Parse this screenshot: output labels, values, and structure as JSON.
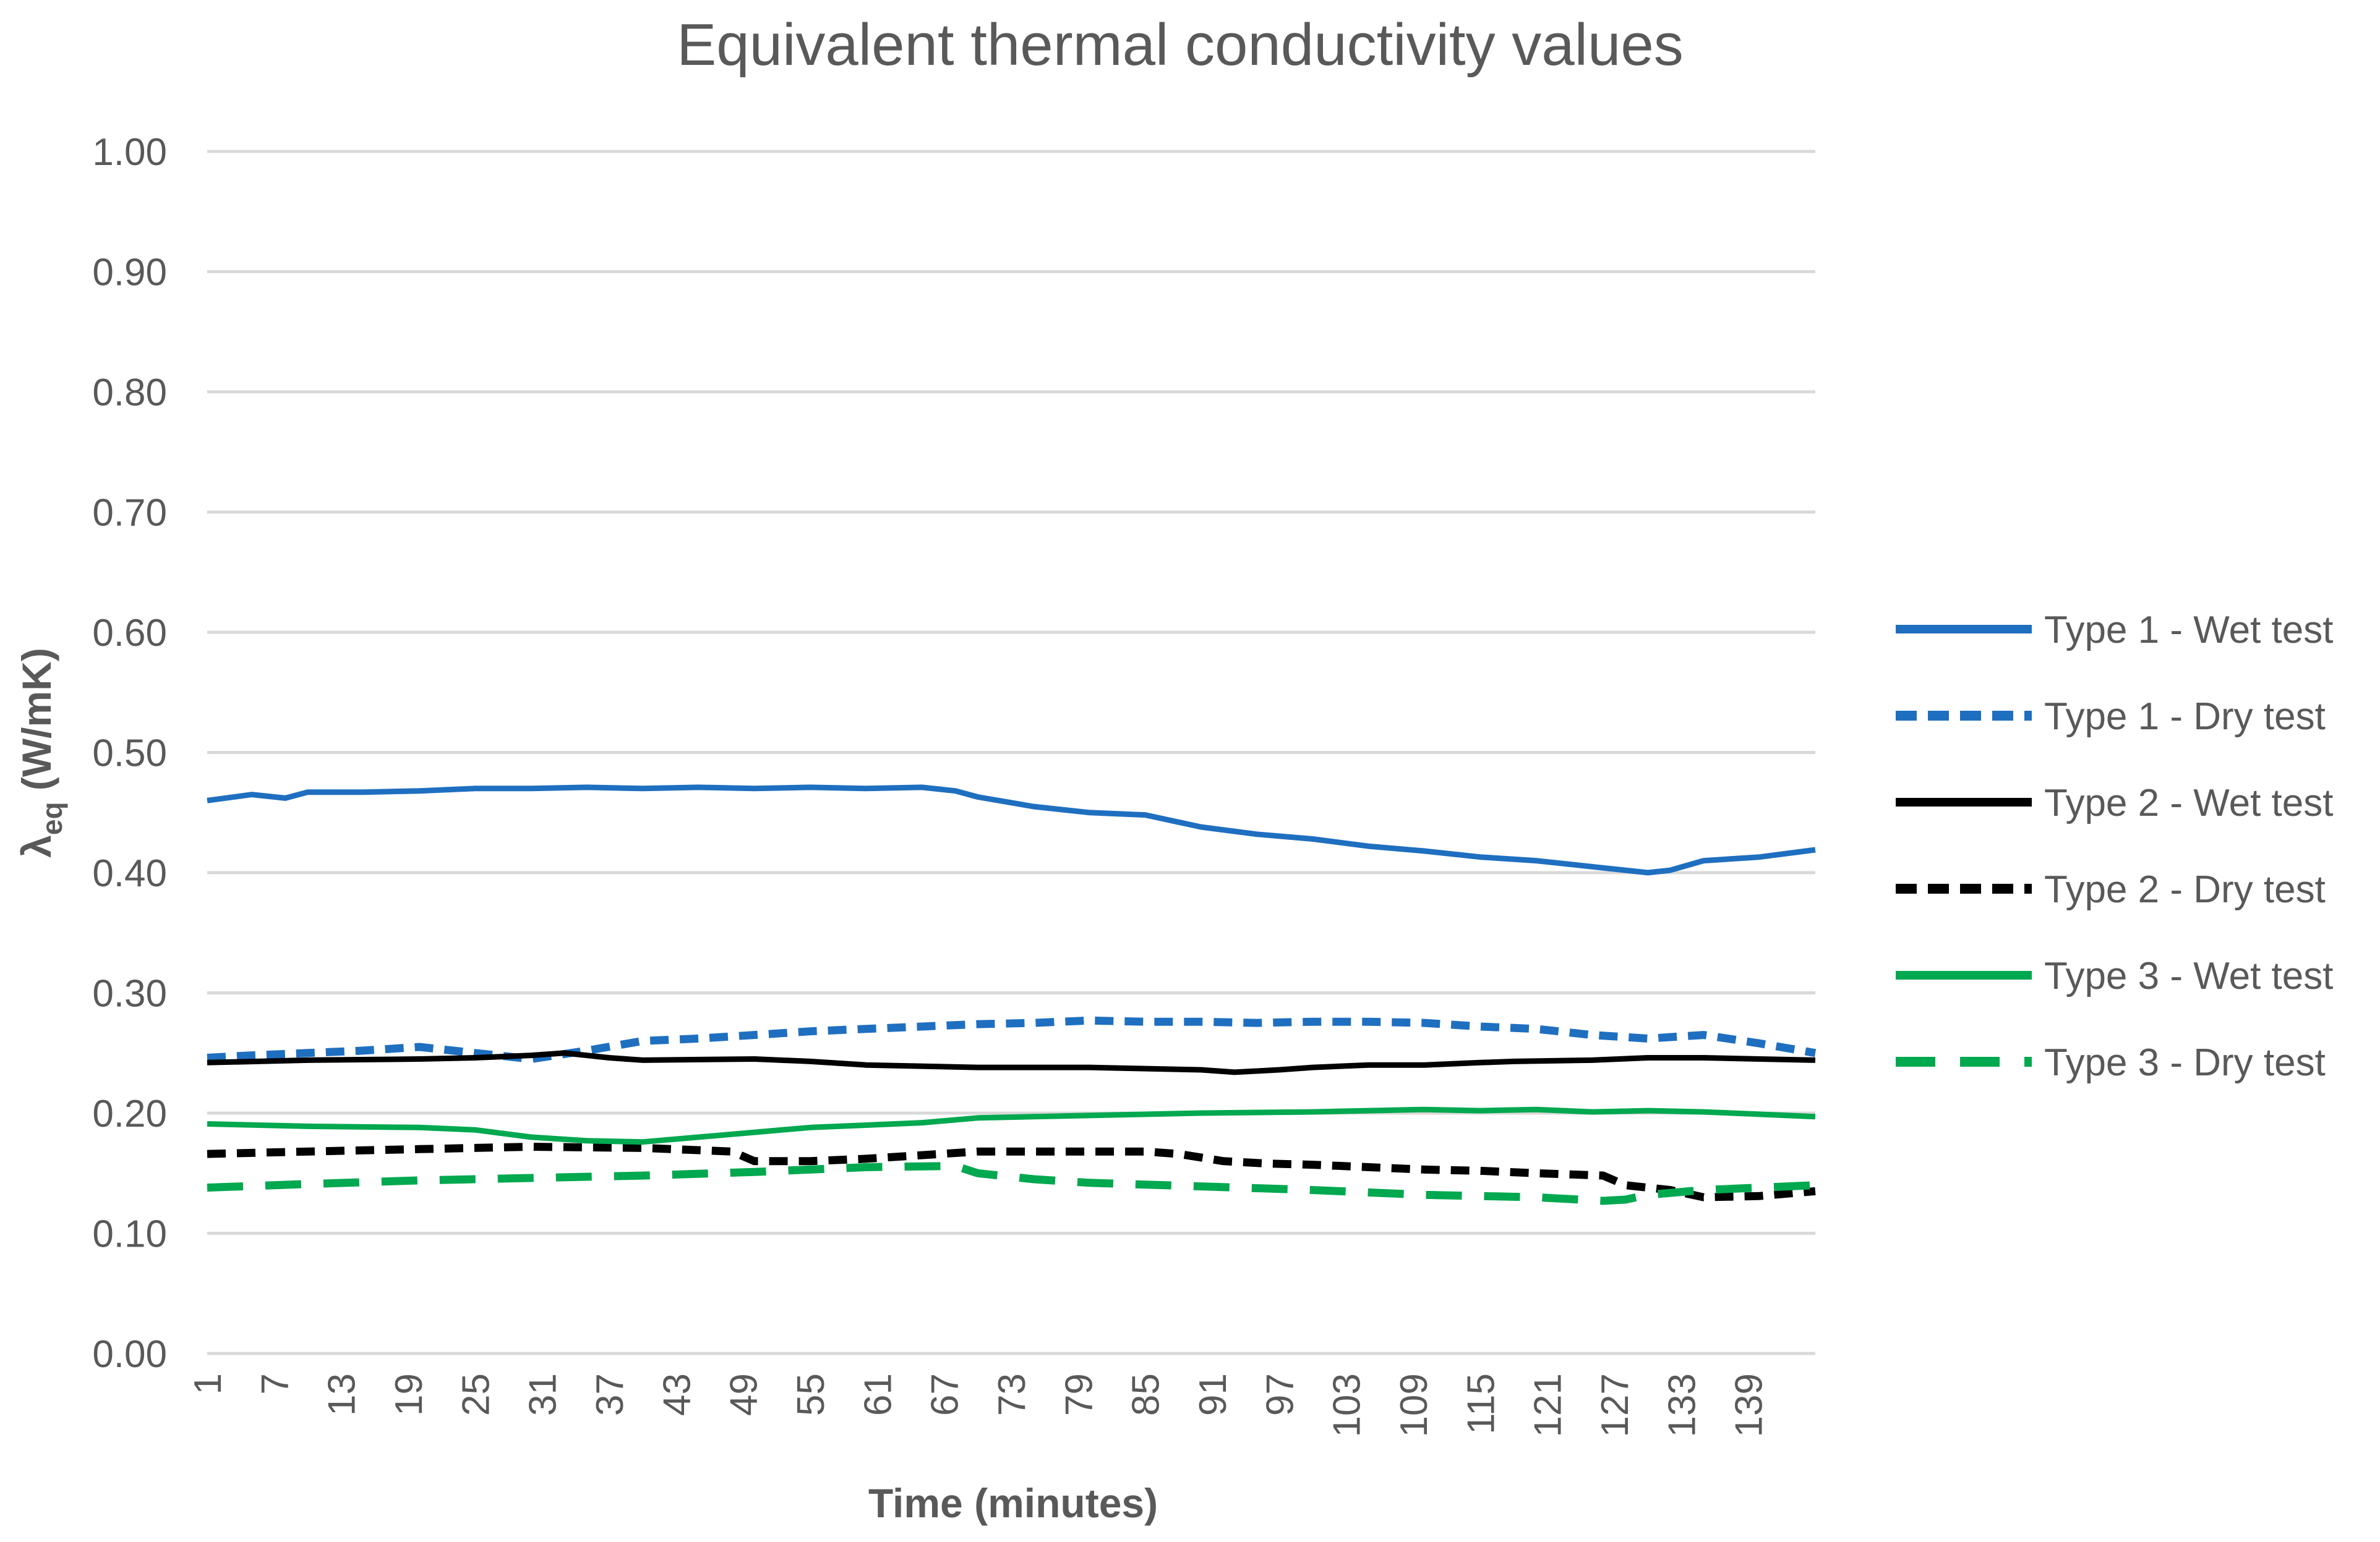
{
  "chart_data": {
    "type": "line",
    "title": "Equivalent thermal conductivity values",
    "xlabel": "Time (minutes)",
    "ylabel_main": "λ",
    "ylabel_sub": "eq",
    "ylabel_unit": " (W/mK)",
    "ylim": [
      0,
      1
    ],
    "yticks": [
      "0.00",
      "0.10",
      "0.20",
      "0.30",
      "0.40",
      "0.50",
      "0.60",
      "0.70",
      "0.80",
      "0.90",
      "1.00"
    ],
    "xticks": [
      "1",
      "7",
      "13",
      "19",
      "25",
      "31",
      "37",
      "43",
      "49",
      "55",
      "61",
      "67",
      "73",
      "79",
      "85",
      "91",
      "97",
      "103",
      "109",
      "115",
      "121",
      "127",
      "133",
      "139"
    ],
    "x_range": [
      1,
      145
    ],
    "grid": true,
    "legend_position": "right",
    "series": [
      {
        "name": "Type 1 - Wet test",
        "color": "#1f6fc0",
        "dash": "solid",
        "points": [
          [
            1,
            0.46
          ],
          [
            5,
            0.465
          ],
          [
            8,
            0.462
          ],
          [
            10,
            0.467
          ],
          [
            15,
            0.467
          ],
          [
            20,
            0.468
          ],
          [
            25,
            0.47
          ],
          [
            30,
            0.47
          ],
          [
            35,
            0.471
          ],
          [
            40,
            0.47
          ],
          [
            45,
            0.471
          ],
          [
            50,
            0.47
          ],
          [
            55,
            0.471
          ],
          [
            60,
            0.47
          ],
          [
            65,
            0.471
          ],
          [
            68,
            0.468
          ],
          [
            70,
            0.463
          ],
          [
            75,
            0.455
          ],
          [
            80,
            0.45
          ],
          [
            85,
            0.448
          ],
          [
            88,
            0.442
          ],
          [
            90,
            0.438
          ],
          [
            95,
            0.432
          ],
          [
            100,
            0.428
          ],
          [
            105,
            0.422
          ],
          [
            110,
            0.418
          ],
          [
            115,
            0.413
          ],
          [
            120,
            0.41
          ],
          [
            125,
            0.405
          ],
          [
            130,
            0.4
          ],
          [
            132,
            0.402
          ],
          [
            135,
            0.41
          ],
          [
            140,
            0.413
          ],
          [
            145,
            0.419
          ]
        ]
      },
      {
        "name": "Type 1 - Dry test",
        "color": "#1f6fc0",
        "dash": "dotted",
        "points": [
          [
            1,
            0.246
          ],
          [
            5,
            0.248
          ],
          [
            10,
            0.25
          ],
          [
            15,
            0.252
          ],
          [
            20,
            0.255
          ],
          [
            25,
            0.25
          ],
          [
            30,
            0.245
          ],
          [
            35,
            0.252
          ],
          [
            40,
            0.26
          ],
          [
            45,
            0.262
          ],
          [
            50,
            0.265
          ],
          [
            55,
            0.268
          ],
          [
            60,
            0.27
          ],
          [
            65,
            0.272
          ],
          [
            70,
            0.274
          ],
          [
            75,
            0.275
          ],
          [
            80,
            0.277
          ],
          [
            85,
            0.276
          ],
          [
            90,
            0.276
          ],
          [
            95,
            0.275
          ],
          [
            100,
            0.276
          ],
          [
            105,
            0.276
          ],
          [
            110,
            0.275
          ],
          [
            115,
            0.272
          ],
          [
            120,
            0.27
          ],
          [
            125,
            0.265
          ],
          [
            130,
            0.262
          ],
          [
            135,
            0.265
          ],
          [
            140,
            0.258
          ],
          [
            145,
            0.25
          ]
        ]
      },
      {
        "name": "Type 2 - Wet test",
        "color": "#000000",
        "dash": "solid",
        "points": [
          [
            1,
            0.242
          ],
          [
            10,
            0.244
          ],
          [
            20,
            0.245
          ],
          [
            25,
            0.246
          ],
          [
            30,
            0.248
          ],
          [
            33,
            0.25
          ],
          [
            37,
            0.246
          ],
          [
            40,
            0.244
          ],
          [
            50,
            0.245
          ],
          [
            55,
            0.243
          ],
          [
            60,
            0.24
          ],
          [
            70,
            0.238
          ],
          [
            80,
            0.238
          ],
          [
            90,
            0.236
          ],
          [
            93,
            0.234
          ],
          [
            97,
            0.236
          ],
          [
            100,
            0.238
          ],
          [
            105,
            0.24
          ],
          [
            110,
            0.24
          ],
          [
            115,
            0.242
          ],
          [
            118,
            0.243
          ],
          [
            125,
            0.244
          ],
          [
            130,
            0.246
          ],
          [
            135,
            0.246
          ],
          [
            140,
            0.245
          ],
          [
            145,
            0.244
          ]
        ]
      },
      {
        "name": "Type 2 - Dry test",
        "color": "#000000",
        "dash": "dotted",
        "points": [
          [
            1,
            0.166
          ],
          [
            10,
            0.168
          ],
          [
            20,
            0.17
          ],
          [
            30,
            0.172
          ],
          [
            40,
            0.171
          ],
          [
            48,
            0.168
          ],
          [
            50,
            0.16
          ],
          [
            55,
            0.16
          ],
          [
            60,
            0.162
          ],
          [
            65,
            0.165
          ],
          [
            70,
            0.168
          ],
          [
            80,
            0.168
          ],
          [
            85,
            0.168
          ],
          [
            88,
            0.166
          ],
          [
            92,
            0.16
          ],
          [
            96,
            0.158
          ],
          [
            100,
            0.157
          ],
          [
            105,
            0.155
          ],
          [
            110,
            0.153
          ],
          [
            115,
            0.152
          ],
          [
            120,
            0.15
          ],
          [
            126,
            0.148
          ],
          [
            128,
            0.14
          ],
          [
            132,
            0.136
          ],
          [
            135,
            0.13
          ],
          [
            140,
            0.131
          ],
          [
            145,
            0.135
          ]
        ]
      },
      {
        "name": "Type 3 - Wet test",
        "color": "#00a84f",
        "dash": "solid",
        "points": [
          [
            1,
            0.191
          ],
          [
            10,
            0.189
          ],
          [
            20,
            0.188
          ],
          [
            25,
            0.186
          ],
          [
            30,
            0.18
          ],
          [
            35,
            0.177
          ],
          [
            40,
            0.176
          ],
          [
            45,
            0.18
          ],
          [
            50,
            0.184
          ],
          [
            55,
            0.188
          ],
          [
            60,
            0.19
          ],
          [
            65,
            0.192
          ],
          [
            70,
            0.196
          ],
          [
            75,
            0.197
          ],
          [
            80,
            0.198
          ],
          [
            90,
            0.2
          ],
          [
            100,
            0.201
          ],
          [
            105,
            0.202
          ],
          [
            110,
            0.203
          ],
          [
            115,
            0.202
          ],
          [
            120,
            0.203
          ],
          [
            125,
            0.201
          ],
          [
            130,
            0.202
          ],
          [
            135,
            0.201
          ],
          [
            140,
            0.199
          ],
          [
            145,
            0.197
          ]
        ]
      },
      {
        "name": "Type 3 - Dry test",
        "color": "#00a84f",
        "dash": "dashed",
        "points": [
          [
            1,
            0.138
          ],
          [
            10,
            0.141
          ],
          [
            20,
            0.144
          ],
          [
            30,
            0.146
          ],
          [
            40,
            0.148
          ],
          [
            50,
            0.151
          ],
          [
            60,
            0.155
          ],
          [
            68,
            0.156
          ],
          [
            70,
            0.15
          ],
          [
            75,
            0.145
          ],
          [
            80,
            0.142
          ],
          [
            90,
            0.139
          ],
          [
            100,
            0.136
          ],
          [
            110,
            0.132
          ],
          [
            120,
            0.13
          ],
          [
            126,
            0.127
          ],
          [
            128,
            0.128
          ],
          [
            130,
            0.132
          ],
          [
            135,
            0.136
          ],
          [
            140,
            0.138
          ],
          [
            145,
            0.14
          ]
        ]
      }
    ]
  }
}
